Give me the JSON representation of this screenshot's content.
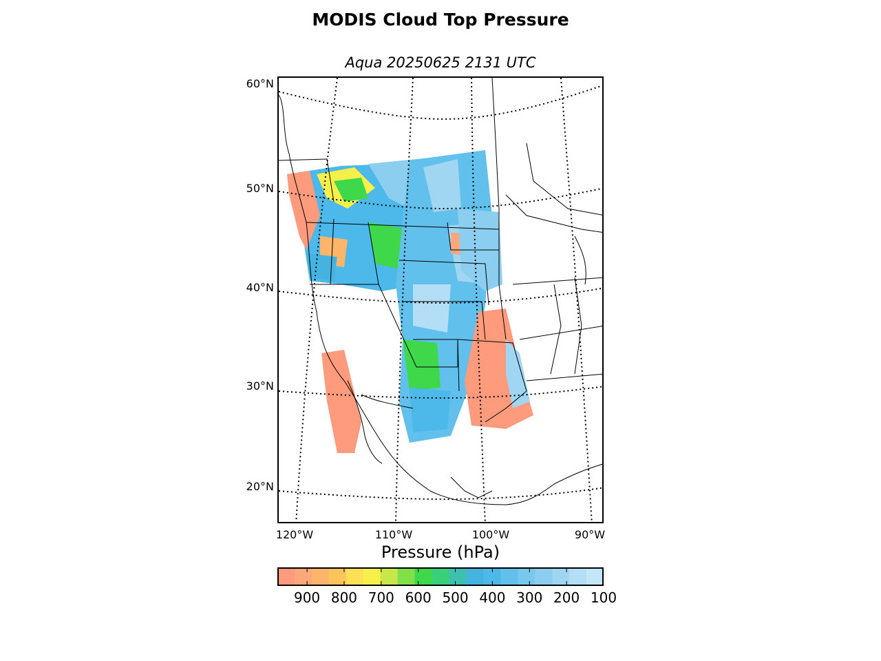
{
  "title": "MODIS Cloud Top Pressure",
  "subtitle": "Aqua 20250625 2131 UTC",
  "map": {
    "lat_labels": [
      "60°N",
      "50°N",
      "40°N",
      "30°N",
      "20°N"
    ],
    "lon_labels": [
      "120°W",
      "110°W",
      "100°W",
      "90°W"
    ]
  },
  "colorbar": {
    "title": "Pressure (hPa)",
    "range": [
      980,
      100
    ],
    "tick_labels": [
      "900",
      "800",
      "700",
      "600",
      "500",
      "400",
      "300",
      "200",
      "100"
    ],
    "tick_values": [
      900,
      800,
      700,
      600,
      500,
      400,
      300,
      200,
      100
    ],
    "colors": [
      "#fd9b7c",
      "#fda77a",
      "#fdb56a",
      "#fdc45c",
      "#fde055",
      "#f7ef4a",
      "#c8e84a",
      "#7fe04a",
      "#3fd84a",
      "#38d07a",
      "#3cc0b0",
      "#45b2e0",
      "#4db8ea",
      "#62c0ec",
      "#78c8ee",
      "#8ccef0",
      "#a0d6f2",
      "#b4def6",
      "#c4e6fa"
    ]
  }
}
